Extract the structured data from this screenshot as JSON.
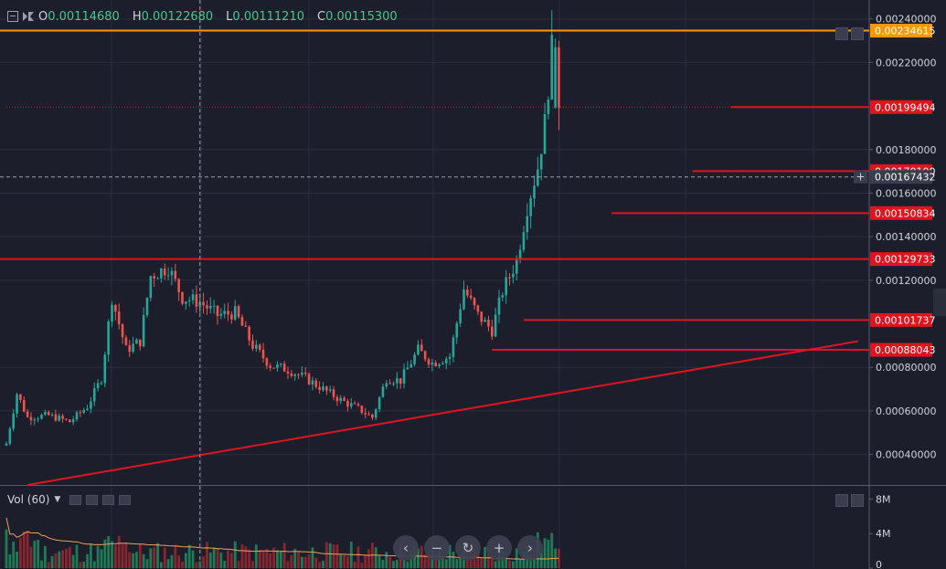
{
  "ohlc": {
    "open_label": "O",
    "open": "0.00114680",
    "high_label": "H",
    "high": "0.00122680",
    "low_label": "L",
    "low": "0.00111210",
    "close_label": "C",
    "close": "0.00115300"
  },
  "volume_panel": {
    "legend": "Vol (60)",
    "axis_ticks": [
      "8M",
      "4M",
      "0"
    ]
  },
  "navigation": {
    "icons": [
      "chevron-left-icon",
      "zoom-out-icon",
      "reset-icon",
      "zoom-in-icon",
      "chevron-right-icon"
    ],
    "glyphs": [
      "‹",
      "−",
      "↻",
      "+",
      "›"
    ]
  },
  "colors": {
    "background": "#1c1e2b",
    "up": "#26a69a",
    "down": "#ef5350",
    "orange_line": "#ff9800",
    "red_line": "#e0141e",
    "ohlc_value": "#43c98a",
    "volume_ma": "#f0a05a"
  },
  "chart_data": {
    "type": "candlestick",
    "price_axis_ticks": [
      "0.00240000",
      "0.00220000",
      "0.00180000",
      "0.00160000",
      "0.00140000",
      "0.00120000",
      "0.00080000",
      "0.00060000",
      "0.00040000"
    ],
    "price_labels": [
      {
        "text": "0.00234615",
        "value": 0.00234615,
        "color": "#ff9800"
      },
      {
        "text": "0.00199494",
        "value": 0.00199494,
        "color": "#e0141e"
      },
      {
        "text": "0.00170100",
        "value": 0.001701,
        "color": "#e0141e"
      },
      {
        "text": "0.00167432",
        "value": 0.00167432,
        "color": "#3a3d4d"
      },
      {
        "text": "0.00150834",
        "value": 0.00150834,
        "color": "#e0141e"
      },
      {
        "text": "0.00129733",
        "value": 0.00129733,
        "color": "#e0141e"
      },
      {
        "text": "0.00101737",
        "value": 0.00101737,
        "color": "#e0141e"
      },
      {
        "text": "0.00088043",
        "value": 0.00088043,
        "color": "#e0141e"
      }
    ],
    "ylim": [
      0.00026,
      0.00247
    ],
    "horizontal_lines": [
      {
        "value": 0.00234615,
        "color": "#ff9800",
        "start_bar": 0
      },
      {
        "value": 0.00129733,
        "color": "#e0141e",
        "start_bar": 0
      },
      {
        "value": 0.00199494,
        "color": "#e0141e",
        "start_bar": 206,
        "dotted_from": 0
      },
      {
        "value": 0.001701,
        "color": "#e0141e",
        "start_bar": 195
      },
      {
        "value": 0.00150834,
        "color": "#e0141e",
        "start_bar": 172
      },
      {
        "value": 0.00101737,
        "color": "#e0141e",
        "start_bar": 147
      },
      {
        "value": 0.00088043,
        "color": "#e0141e",
        "start_bar": 138
      }
    ],
    "trendline": {
      "from": {
        "bar": 6,
        "value": 0.00026
      },
      "to": {
        "bar": 242,
        "value": 0.00092
      },
      "color": "#e0141e"
    },
    "crosshair": {
      "bar": 55,
      "value": 0.00167432
    },
    "anchor_closes": [
      [
        0,
        0.00045
      ],
      [
        3,
        0.00068
      ],
      [
        6,
        0.00057
      ],
      [
        12,
        0.00058
      ],
      [
        18,
        0.00055
      ],
      [
        23,
        0.00062
      ],
      [
        27,
        0.00075
      ],
      [
        30,
        0.00112
      ],
      [
        34,
        0.00088
      ],
      [
        38,
        0.00092
      ],
      [
        41,
        0.00122
      ],
      [
        46,
        0.00126
      ],
      [
        50,
        0.00112
      ],
      [
        55,
        0.0011
      ],
      [
        60,
        0.00104
      ],
      [
        65,
        0.00105
      ],
      [
        70,
        0.0009
      ],
      [
        75,
        0.00081
      ],
      [
        80,
        0.00079
      ],
      [
        85,
        0.00075
      ],
      [
        90,
        0.0007
      ],
      [
        95,
        0.00065
      ],
      [
        100,
        0.00061
      ],
      [
        104,
        0.00057
      ],
      [
        108,
        0.00075
      ],
      [
        112,
        0.00074
      ],
      [
        117,
        0.00088
      ],
      [
        121,
        0.00082
      ],
      [
        126,
        0.00085
      ],
      [
        130,
        0.00116
      ],
      [
        134,
        0.00104
      ],
      [
        138,
        0.00097
      ],
      [
        141,
        0.00115
      ],
      [
        145,
        0.00129
      ],
      [
        148,
        0.00154
      ],
      [
        151,
        0.00172
      ],
      [
        153,
        0.00192
      ],
      [
        155,
        0.00226
      ],
      [
        157,
        0.00199
      ]
    ],
    "volume": {
      "ylim": [
        0,
        9000000
      ]
    }
  }
}
